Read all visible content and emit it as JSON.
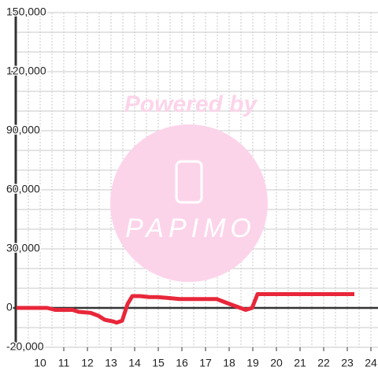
{
  "chart_data": {
    "type": "line",
    "watermark": {
      "top": "Powered by",
      "logo": "PAPIMO"
    },
    "x": [
      9.0,
      10.3,
      10.63,
      11.37,
      11.63,
      12.13,
      12.47,
      12.73,
      13.13,
      13.23,
      13.47,
      13.7,
      13.9,
      14.23,
      14.63,
      14.97,
      15.47,
      15.9,
      17.47,
      17.8,
      18.13,
      18.47,
      18.7,
      18.97,
      19.2,
      23.3
    ],
    "series": [
      {
        "color": "#e8273a",
        "values": [
          0,
          0,
          -1000,
          -1000,
          -2000,
          -2500,
          -4000,
          -6000,
          -7000,
          -7500,
          -6500,
          2000,
          6000,
          6000,
          5500,
          5500,
          5000,
          4500,
          4500,
          3000,
          1500,
          0,
          -1000,
          0,
          7000,
          7000
        ]
      }
    ],
    "xlim": [
      9,
      24.3
    ],
    "xticks": [
      10,
      11,
      12,
      13,
      14,
      15,
      16,
      17,
      18,
      19,
      20,
      21,
      22,
      23,
      24
    ],
    "ylim": [
      -20000,
      150000
    ],
    "yticks": [
      {
        "value": -20000,
        "label": "-20,000"
      },
      0,
      {
        "value": 30000,
        "label": "30,000"
      },
      {
        "value": 60000,
        "label": "60,000"
      },
      {
        "value": 90000,
        "label": "90,000"
      },
      {
        "value": 120000,
        "label": "120,000"
      },
      {
        "value": 150000,
        "label": "150,000"
      }
    ],
    "minor_ystep": 10000,
    "minor_xstep": 0.5,
    "grid": true
  }
}
